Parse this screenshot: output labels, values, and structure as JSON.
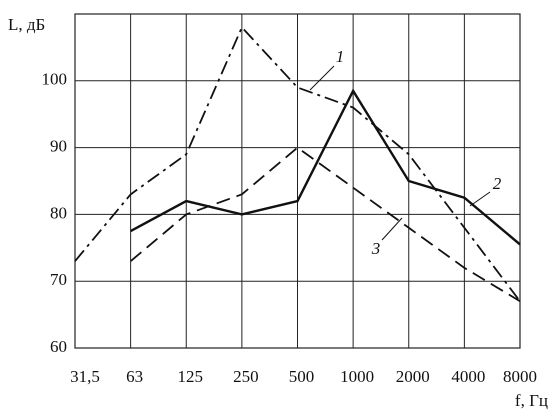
{
  "chart_data": {
    "type": "line",
    "y_label": "L, дБ",
    "x_label": "f, Гц",
    "categories": [
      "31,5",
      "63",
      "125",
      "250",
      "500",
      "1000",
      "2000",
      "4000",
      "8000"
    ],
    "series": [
      {
        "name": "1",
        "color": "#111",
        "style": "dash-dot",
        "values": [
          73,
          83,
          89,
          108,
          99,
          96,
          89,
          78,
          67
        ]
      },
      {
        "name": "2",
        "color": "#111",
        "style": "solid",
        "values": [
          null,
          77.5,
          82,
          80,
          82,
          98.5,
          85,
          82.5,
          75.5
        ]
      },
      {
        "name": "3",
        "color": "#111",
        "style": "dash",
        "values": [
          null,
          73,
          80,
          83,
          90,
          84,
          78,
          72,
          67
        ]
      }
    ],
    "ylim": [
      60,
      110
    ],
    "yticks": [
      60,
      70,
      80,
      90,
      100
    ],
    "grid": true
  }
}
